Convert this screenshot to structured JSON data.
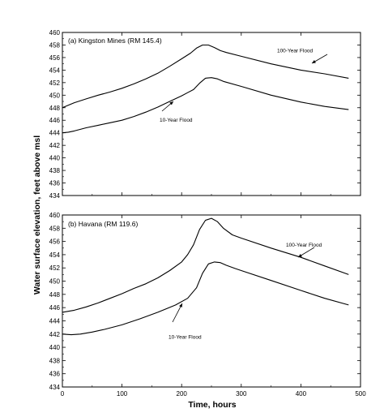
{
  "figure": {
    "ylabel": "Water surface elevation, feet above msl",
    "xlabel": "Time, hours"
  },
  "chart_data": [
    {
      "type": "line",
      "title": "(a) Kingston Mines (RM 145.4)",
      "xlim": [
        0,
        500
      ],
      "ylim": [
        434,
        460
      ],
      "xticks": [
        0,
        100,
        200,
        300,
        400,
        500
      ],
      "yticks": [
        434,
        436,
        438,
        440,
        442,
        444,
        446,
        448,
        450,
        452,
        454,
        456,
        458,
        460
      ],
      "show_x_tick_labels": false,
      "grid": false,
      "series": [
        {
          "name": "100-Year Flood",
          "x": [
            0,
            20,
            40,
            60,
            80,
            100,
            120,
            140,
            160,
            180,
            200,
            215,
            225,
            235,
            245,
            255,
            265,
            275,
            300,
            350,
            400,
            440,
            480
          ],
          "y": [
            448.0,
            448.8,
            449.4,
            450.0,
            450.5,
            451.1,
            451.8,
            452.6,
            453.5,
            454.6,
            455.8,
            456.7,
            457.5,
            458.0,
            458.0,
            457.6,
            457.1,
            456.8,
            456.2,
            455.0,
            454.0,
            453.4,
            452.7
          ]
        },
        {
          "name": "10-Year Flood",
          "x": [
            0,
            10,
            20,
            40,
            60,
            80,
            100,
            120,
            140,
            160,
            180,
            200,
            210,
            220,
            230,
            240,
            250,
            260,
            270,
            300,
            350,
            400,
            440,
            480
          ],
          "y": [
            444.0,
            444.1,
            444.3,
            444.8,
            445.2,
            445.6,
            446.0,
            446.6,
            447.3,
            448.1,
            449.0,
            449.9,
            450.4,
            450.9,
            451.9,
            452.7,
            452.8,
            452.6,
            452.2,
            451.4,
            450.0,
            448.9,
            448.2,
            447.7
          ]
        }
      ],
      "annotations": [
        {
          "text": "100-Year Flood",
          "x": 360,
          "y": 456.8
        },
        {
          "text": "10-Year Flood",
          "x": 163,
          "y": 445.8
        }
      ]
    },
    {
      "type": "line",
      "title": "(b) Havana (RM 119.6)",
      "xlim": [
        0,
        500
      ],
      "ylim": [
        434,
        460
      ],
      "xticks": [
        0,
        100,
        200,
        300,
        400,
        500
      ],
      "xtick_labels": [
        "0",
        "100",
        "200",
        "300",
        "400",
        "500"
      ],
      "yticks": [
        434,
        436,
        438,
        440,
        442,
        444,
        446,
        448,
        450,
        452,
        454,
        456,
        458,
        460
      ],
      "show_x_tick_labels": true,
      "grid": false,
      "series": [
        {
          "name": "100-Year Flood",
          "x": [
            0,
            20,
            40,
            60,
            80,
            100,
            120,
            140,
            160,
            180,
            200,
            210,
            220,
            230,
            240,
            250,
            260,
            270,
            285,
            300,
            350,
            400,
            440,
            480
          ],
          "y": [
            445.3,
            445.6,
            446.1,
            446.7,
            447.4,
            448.1,
            448.9,
            449.6,
            450.5,
            451.6,
            452.9,
            454.0,
            455.5,
            457.8,
            459.2,
            459.5,
            459.0,
            458.0,
            457.0,
            456.5,
            455.0,
            453.6,
            452.3,
            451.0
          ]
        },
        {
          "name": "10-Year Flood",
          "x": [
            0,
            15,
            30,
            50,
            70,
            100,
            130,
            160,
            190,
            210,
            225,
            235,
            245,
            255,
            265,
            275,
            290,
            300,
            350,
            400,
            440,
            480
          ],
          "y": [
            442.0,
            441.9,
            442.0,
            442.3,
            442.7,
            443.4,
            444.3,
            445.3,
            446.4,
            447.4,
            449.0,
            451.2,
            452.6,
            452.9,
            452.8,
            452.4,
            451.9,
            451.6,
            450.1,
            448.6,
            447.4,
            446.4
          ]
        }
      ],
      "annotations": [
        {
          "text": "100-Year Flood",
          "x": 375,
          "y": 455.2
        },
        {
          "text": "10-Year Flood",
          "x": 178,
          "y": 441.3
        }
      ]
    }
  ]
}
